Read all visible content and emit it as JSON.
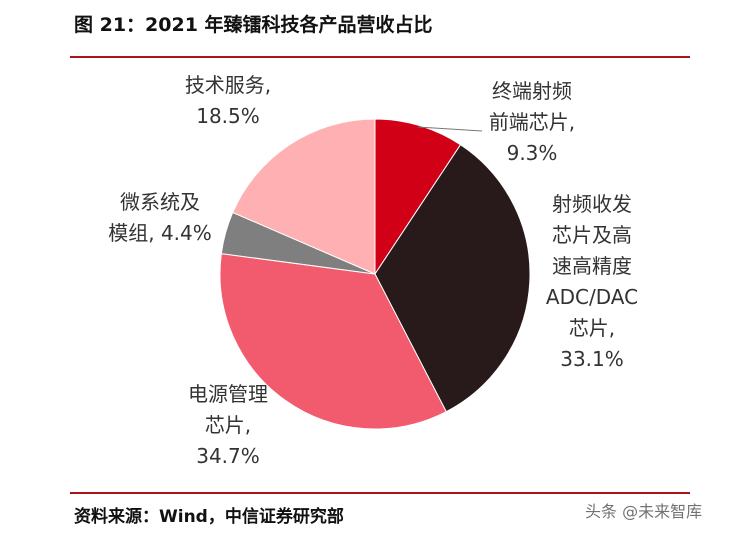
{
  "header": {
    "title": "图 21：2021 年臻镭科技各产品营收占比"
  },
  "footer": {
    "source": "资料来源：Wind，中信证券研究部",
    "watermark": "头条 @未来智库"
  },
  "chart_data": {
    "type": "pie",
    "title": "图 21：2021 年臻镭科技各产品营收占比",
    "slices": [
      {
        "label_lines": [
          "终端射频",
          "前端芯片,",
          "9.3%"
        ],
        "value": 9.3,
        "color": "#d10016"
      },
      {
        "label_lines": [
          "射频收发",
          "芯片及高",
          "速高精度",
          "ADC/DAC",
          "芯片,",
          "33.1%"
        ],
        "value": 33.1,
        "color": "#281a1a"
      },
      {
        "label_lines": [
          "电源管理",
          "芯片,",
          "34.7%"
        ],
        "value": 34.7,
        "color": "#f25a6e"
      },
      {
        "label_lines": [
          "微系统及",
          "模组, 4.4%"
        ],
        "value": 4.4,
        "color": "#7f7f7f"
      },
      {
        "label_lines": [
          "技术服务,",
          "18.5%"
        ],
        "value": 18.5,
        "color": "#ffb0b3"
      }
    ]
  }
}
